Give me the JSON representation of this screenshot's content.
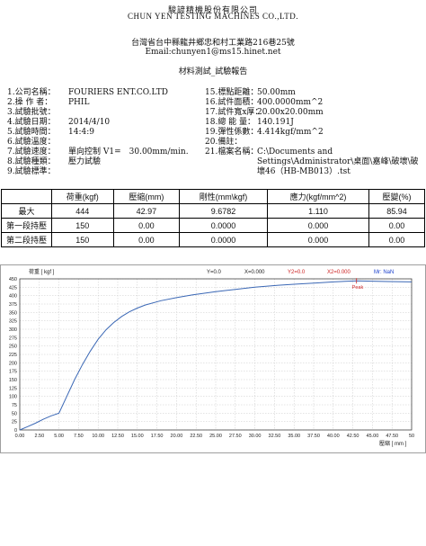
{
  "header": {
    "company_cn": "駿諺精機股份有限公司",
    "company_en": "CHUN YEN TESTING MACHINES CO.,LTD.",
    "address": "台灣省台中縣龍井鄉忠和村工業路216巷25號",
    "email": "Email:chunyen1@ms15.hinet.net",
    "report_title": "材料測試_試驗報告"
  },
  "info_left": [
    {
      "label": "1.公司名稱：",
      "value": "FOURIERS ENT.CO.LTD"
    },
    {
      "label": "2.操 作 者：",
      "value": "PHIL"
    },
    {
      "label": "3.試驗批號：",
      "value": ""
    },
    {
      "label": "4.試驗日期：",
      "value": "2014/4/10"
    },
    {
      "label": "5.試驗時間：",
      "value": "14:4:9"
    },
    {
      "label": "6.試驗溫度：",
      "value": ""
    },
    {
      "label": "7.試驗速度：",
      "value": "單向控制 V1=　30.00mm/min."
    },
    {
      "label": "8.試驗種類：",
      "value": "壓力試驗"
    },
    {
      "label": "9.試驗標準：",
      "value": ""
    }
  ],
  "info_right": [
    {
      "label": "15.標點距離：",
      "value": "50.00mm"
    },
    {
      "label": "16.試件面積：",
      "value": "400.0000mm^2"
    },
    {
      "label": "17.試件寬x厚：",
      "value": "20.00x20.00mm"
    },
    {
      "label": "18.總 能 量：",
      "value": "140.191J"
    },
    {
      "label": "19.彈性係數：",
      "value": "4.414kgf/mm^2"
    },
    {
      "label": "20.備註：",
      "value": ""
    },
    {
      "label": "21.檔案名稱：",
      "value": "C:\\Documents and Settings\\Administrator\\桌面\\嘉峰\\破壞\\破壞46（HB-MB013）.tst"
    }
  ],
  "table": {
    "headers": [
      "",
      "荷重(kgf)",
      "壓縮(mm)",
      "剛性(mm\\kgf)",
      "應力(kgf/mm^2)",
      "壓變(%)"
    ],
    "rows": [
      [
        "最大",
        "444",
        "42.97",
        "9.6782",
        "1.110",
        "85.94"
      ],
      [
        "第一段持壓",
        "150",
        "0.00",
        "0.0000",
        "0.000",
        "0.00"
      ],
      [
        "第二段持壓",
        "150",
        "0.00",
        "0.0000",
        "0.000",
        "0.00"
      ]
    ]
  },
  "chart_data": {
    "type": "line",
    "ylabel": "荷重 [ kgf ]",
    "xlabel": "壓縮 [ mm ]",
    "header_readouts": [
      "Y=0.0",
      "X=0.000",
      "Y2=0.0",
      "X2=0.000",
      "Mr: NaN"
    ],
    "peak_label": "Peak",
    "xlim": [
      0,
      50
    ],
    "ylim": [
      0,
      450
    ],
    "x_ticks": [
      "0.00",
      "2.50",
      "5.00",
      "7.50",
      "10.00",
      "12.50",
      "15.00",
      "17.50",
      "20.00",
      "22.50",
      "25.00",
      "27.50",
      "30.00",
      "32.50",
      "35.00",
      "37.50",
      "40.00",
      "42.50",
      "45.00",
      "47.50",
      "50"
    ],
    "y_ticks": [
      "0",
      "25",
      "50",
      "75",
      "100",
      "125",
      "150",
      "175",
      "200",
      "225",
      "250",
      "275",
      "300",
      "325",
      "350",
      "375",
      "400",
      "425",
      "450"
    ],
    "grid": true,
    "line_color": "#3a67b5",
    "peak_color": "#cc2222",
    "series": [
      {
        "x": [
          0,
          1,
          2,
          3,
          4,
          5,
          6,
          7,
          8,
          9,
          10,
          11,
          12,
          13,
          14,
          15,
          16,
          18,
          20,
          22,
          25,
          28,
          30,
          33,
          35,
          38,
          40,
          42.97,
          45,
          47,
          50
        ],
        "y": [
          0,
          10,
          20,
          32,
          42,
          50,
          100,
          150,
          195,
          235,
          270,
          298,
          320,
          338,
          352,
          363,
          372,
          385,
          394,
          402,
          412,
          420,
          425,
          431,
          434,
          438,
          441,
          444,
          443,
          442,
          441
        ]
      }
    ],
    "peak": {
      "x": 42.97,
      "y": 444
    }
  }
}
